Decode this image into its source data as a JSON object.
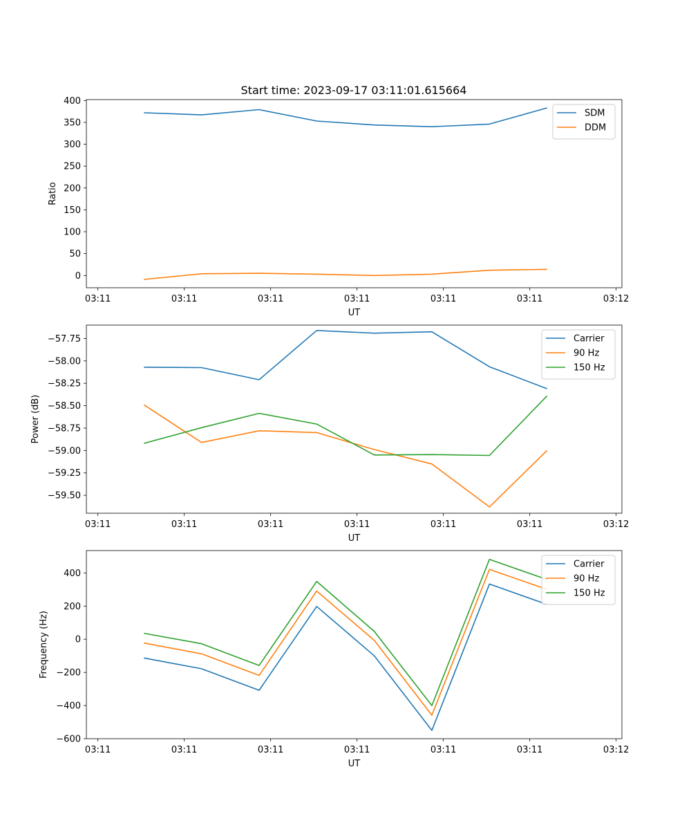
{
  "figure": {
    "title": "Start time: 2023-09-17 03:11:01.615664"
  },
  "chart_data": [
    {
      "type": "line",
      "title": "Start time: 2023-09-17 03:11:01.615664",
      "xlabel": "UT",
      "ylabel": "Ratio",
      "x_tick_labels": [
        "03:11",
        "03:11",
        "03:11",
        "03:11",
        "03:11",
        "03:11",
        "03:12"
      ],
      "x": [
        1,
        2,
        3,
        4,
        5,
        6,
        7,
        8
      ],
      "xlim": [
        0,
        9.3
      ],
      "x_tick_positions": [
        0.2,
        1.7,
        3.2,
        4.7,
        6.2,
        7.7,
        9.2
      ],
      "ylim": [
        -28,
        402
      ],
      "y_ticks": [
        0,
        50,
        100,
        150,
        200,
        250,
        300,
        350,
        400
      ],
      "y_tick_labels": [
        "0",
        "50",
        "100",
        "150",
        "200",
        "250",
        "300",
        "350",
        "400"
      ],
      "legend": "top-right",
      "series": [
        {
          "name": "SDM",
          "color": "#1f77b4",
          "values": [
            372,
            367,
            379,
            353,
            344,
            340,
            346,
            383
          ]
        },
        {
          "name": "DDM",
          "color": "#ff7f0e",
          "values": [
            -9,
            4,
            5,
            3,
            0,
            3,
            12,
            14
          ]
        }
      ]
    },
    {
      "type": "line",
      "title": "",
      "xlabel": "UT",
      "ylabel": "Power (dB)",
      "x_tick_labels": [
        "03:11",
        "03:11",
        "03:11",
        "03:11",
        "03:11",
        "03:11",
        "03:12"
      ],
      "x": [
        1,
        2,
        3,
        4,
        5,
        6,
        7,
        8
      ],
      "xlim": [
        0,
        9.3
      ],
      "x_tick_positions": [
        0.2,
        1.7,
        3.2,
        4.7,
        6.2,
        7.7,
        9.2
      ],
      "ylim": [
        -59.7,
        -57.6
      ],
      "y_ticks": [
        -59.5,
        -59.25,
        -59.0,
        -58.75,
        -58.5,
        -58.25,
        -58.0,
        -57.75
      ],
      "y_tick_labels": [
        "−59.50",
        "−59.25",
        "−59.00",
        "−58.75",
        "−58.50",
        "−58.25",
        "−58.00",
        "−57.75"
      ],
      "legend": "top-right",
      "series": [
        {
          "name": "Carrier",
          "color": "#1f77b4",
          "values": [
            -58.07,
            -58.075,
            -58.21,
            -57.66,
            -57.69,
            -57.675,
            -58.065,
            -58.31
          ]
        },
        {
          "name": "90 Hz",
          "color": "#ff7f0e",
          "values": [
            -58.49,
            -58.91,
            -58.78,
            -58.8,
            -58.99,
            -59.15,
            -59.63,
            -59.0
          ]
        },
        {
          "name": "150 Hz",
          "color": "#2ca02c",
          "values": [
            -58.92,
            -58.745,
            -58.585,
            -58.705,
            -59.05,
            -59.045,
            -59.055,
            -58.39
          ]
        }
      ]
    },
    {
      "type": "line",
      "title": "",
      "xlabel": "UT",
      "ylabel": "Frequency (Hz)",
      "x_tick_labels": [
        "03:11",
        "03:11",
        "03:11",
        "03:11",
        "03:11",
        "03:11",
        "03:12"
      ],
      "x": [
        1,
        2,
        3,
        4,
        5,
        6,
        7,
        8
      ],
      "xlim": [
        0,
        9.3
      ],
      "x_tick_positions": [
        0.2,
        1.7,
        3.2,
        4.7,
        6.2,
        7.7,
        9.2
      ],
      "ylim": [
        -600,
        535
      ],
      "y_ticks": [
        -600,
        -400,
        -200,
        0,
        200,
        400
      ],
      "y_tick_labels": [
        "−600",
        "−400",
        "−200",
        "0",
        "200",
        "400"
      ],
      "legend": "top-right",
      "series": [
        {
          "name": "Carrier",
          "color": "#1f77b4",
          "values": [
            -113,
            -178,
            -308,
            198,
            -100,
            -550,
            333,
            210
          ]
        },
        {
          "name": "90 Hz",
          "color": "#ff7f0e",
          "values": [
            -23,
            -88,
            -218,
            291,
            -7,
            -458,
            421,
            301
          ]
        },
        {
          "name": "150 Hz",
          "color": "#2ca02c",
          "values": [
            36,
            -27,
            -158,
            349,
            47,
            -400,
            482,
            360
          ]
        }
      ]
    }
  ]
}
